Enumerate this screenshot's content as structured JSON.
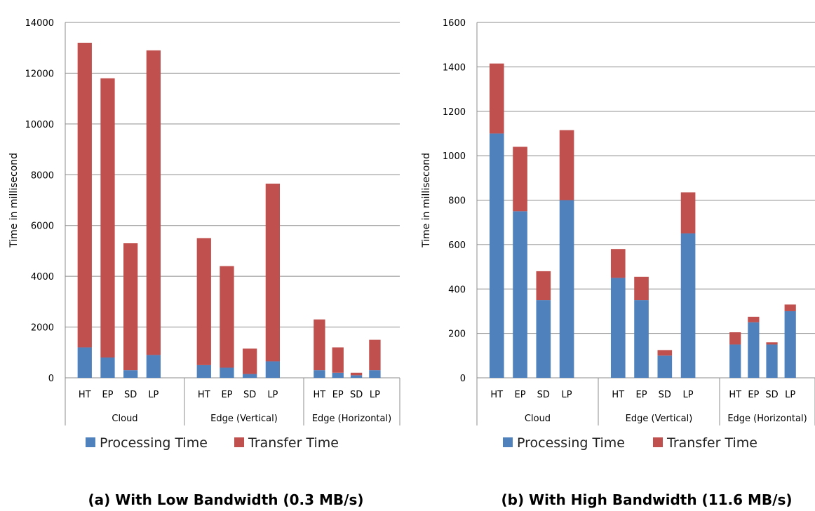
{
  "chart_data": [
    {
      "type": "bar",
      "stacked": true,
      "caption": "(a) With Low Bandwidth (0.3 MB/s)",
      "ylabel": "Time in millisecond",
      "ylim": [
        0,
        14000
      ],
      "yticks": [
        0,
        2000,
        4000,
        6000,
        8000,
        10000,
        12000,
        14000
      ],
      "grid": true,
      "legend_position": "bottom",
      "groups": [
        {
          "name": "Cloud",
          "categories": [
            "HT",
            "EP",
            "SD",
            "LP"
          ]
        },
        {
          "name": "Edge (Vertical)",
          "categories": [
            "HT",
            "EP",
            "SD",
            "LP"
          ]
        },
        {
          "name": "Edge (Horizontal)",
          "categories": [
            "HT",
            "EP",
            "SD",
            "LP"
          ]
        }
      ],
      "series": [
        {
          "name": "Processing Time",
          "color": "#4f81bd",
          "values": [
            1200,
            800,
            300,
            900,
            500,
            400,
            150,
            650,
            300,
            200,
            100,
            300
          ]
        },
        {
          "name": "Transfer Time",
          "color": "#c0504d",
          "values": [
            12000,
            11000,
            5000,
            12000,
            5000,
            4000,
            1000,
            7000,
            2000,
            1000,
            100,
            1200
          ]
        }
      ]
    },
    {
      "type": "bar",
      "stacked": true,
      "caption": "(b) With High Bandwidth (11.6 MB/s)",
      "ylabel": "Time in millisecond",
      "ylim": [
        0,
        1600
      ],
      "yticks": [
        0,
        200,
        400,
        600,
        800,
        1000,
        1200,
        1400,
        1600
      ],
      "grid": true,
      "legend_position": "bottom",
      "groups": [
        {
          "name": "Cloud",
          "categories": [
            "HT",
            "EP",
            "SD",
            "LP"
          ]
        },
        {
          "name": "Edge (Vertical)",
          "categories": [
            "HT",
            "EP",
            "SD",
            "LP"
          ]
        },
        {
          "name": "Edge (Horizontal)",
          "categories": [
            "HT",
            "EP",
            "SD",
            "LP"
          ]
        }
      ],
      "series": [
        {
          "name": "Processing Time",
          "color": "#4f81bd",
          "values": [
            1100,
            750,
            350,
            800,
            450,
            350,
            100,
            650,
            150,
            250,
            150,
            300
          ]
        },
        {
          "name": "Transfer Time",
          "color": "#c0504d",
          "values": [
            315,
            290,
            130,
            315,
            130,
            105,
            25,
            185,
            55,
            25,
            10,
            30
          ]
        }
      ]
    }
  ]
}
